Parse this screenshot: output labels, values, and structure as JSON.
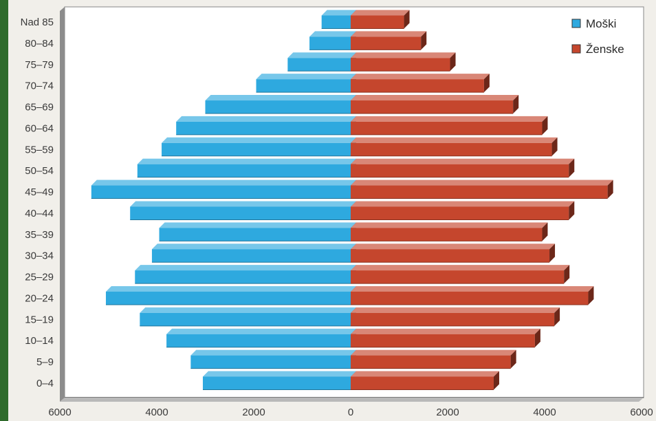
{
  "chart_data": {
    "type": "bar",
    "orientation": "horizontal",
    "layout": "population-pyramid",
    "categories": [
      "0–4",
      "5–9",
      "10–14",
      "15–19",
      "20–24",
      "25–29",
      "30–34",
      "35–39",
      "40–44",
      "45–49",
      "50–54",
      "55–59",
      "60–64",
      "65–69",
      "70–74",
      "75–79",
      "80–84",
      "Nad 85"
    ],
    "series": [
      {
        "name": "Moški",
        "side": "left",
        "color": "#2ea9df",
        "values": [
          3050,
          3300,
          3800,
          4350,
          5050,
          4450,
          4100,
          3950,
          4550,
          5350,
          4400,
          3900,
          3600,
          3000,
          1950,
          1300,
          850,
          600
        ]
      },
      {
        "name": "Ženske",
        "side": "right",
        "color": "#c5462d",
        "values": [
          2950,
          3300,
          3800,
          4200,
          4900,
          4400,
          4100,
          3950,
          4500,
          5300,
          4500,
          4150,
          3950,
          3350,
          2750,
          2050,
          1450,
          1100
        ]
      }
    ],
    "xlim": [
      -6000,
      6000
    ],
    "xticks": [
      {
        "value": -6000,
        "label": "6000"
      },
      {
        "value": -4000,
        "label": "4000"
      },
      {
        "value": -2000,
        "label": "2000"
      },
      {
        "value": 0,
        "label": "0"
      },
      {
        "value": 2000,
        "label": "2000"
      },
      {
        "value": 4000,
        "label": "4000"
      },
      {
        "value": 6000,
        "label": "6000"
      }
    ],
    "legend_position": "top-right",
    "grid": false,
    "title": "",
    "xlabel": "",
    "ylabel": ""
  }
}
